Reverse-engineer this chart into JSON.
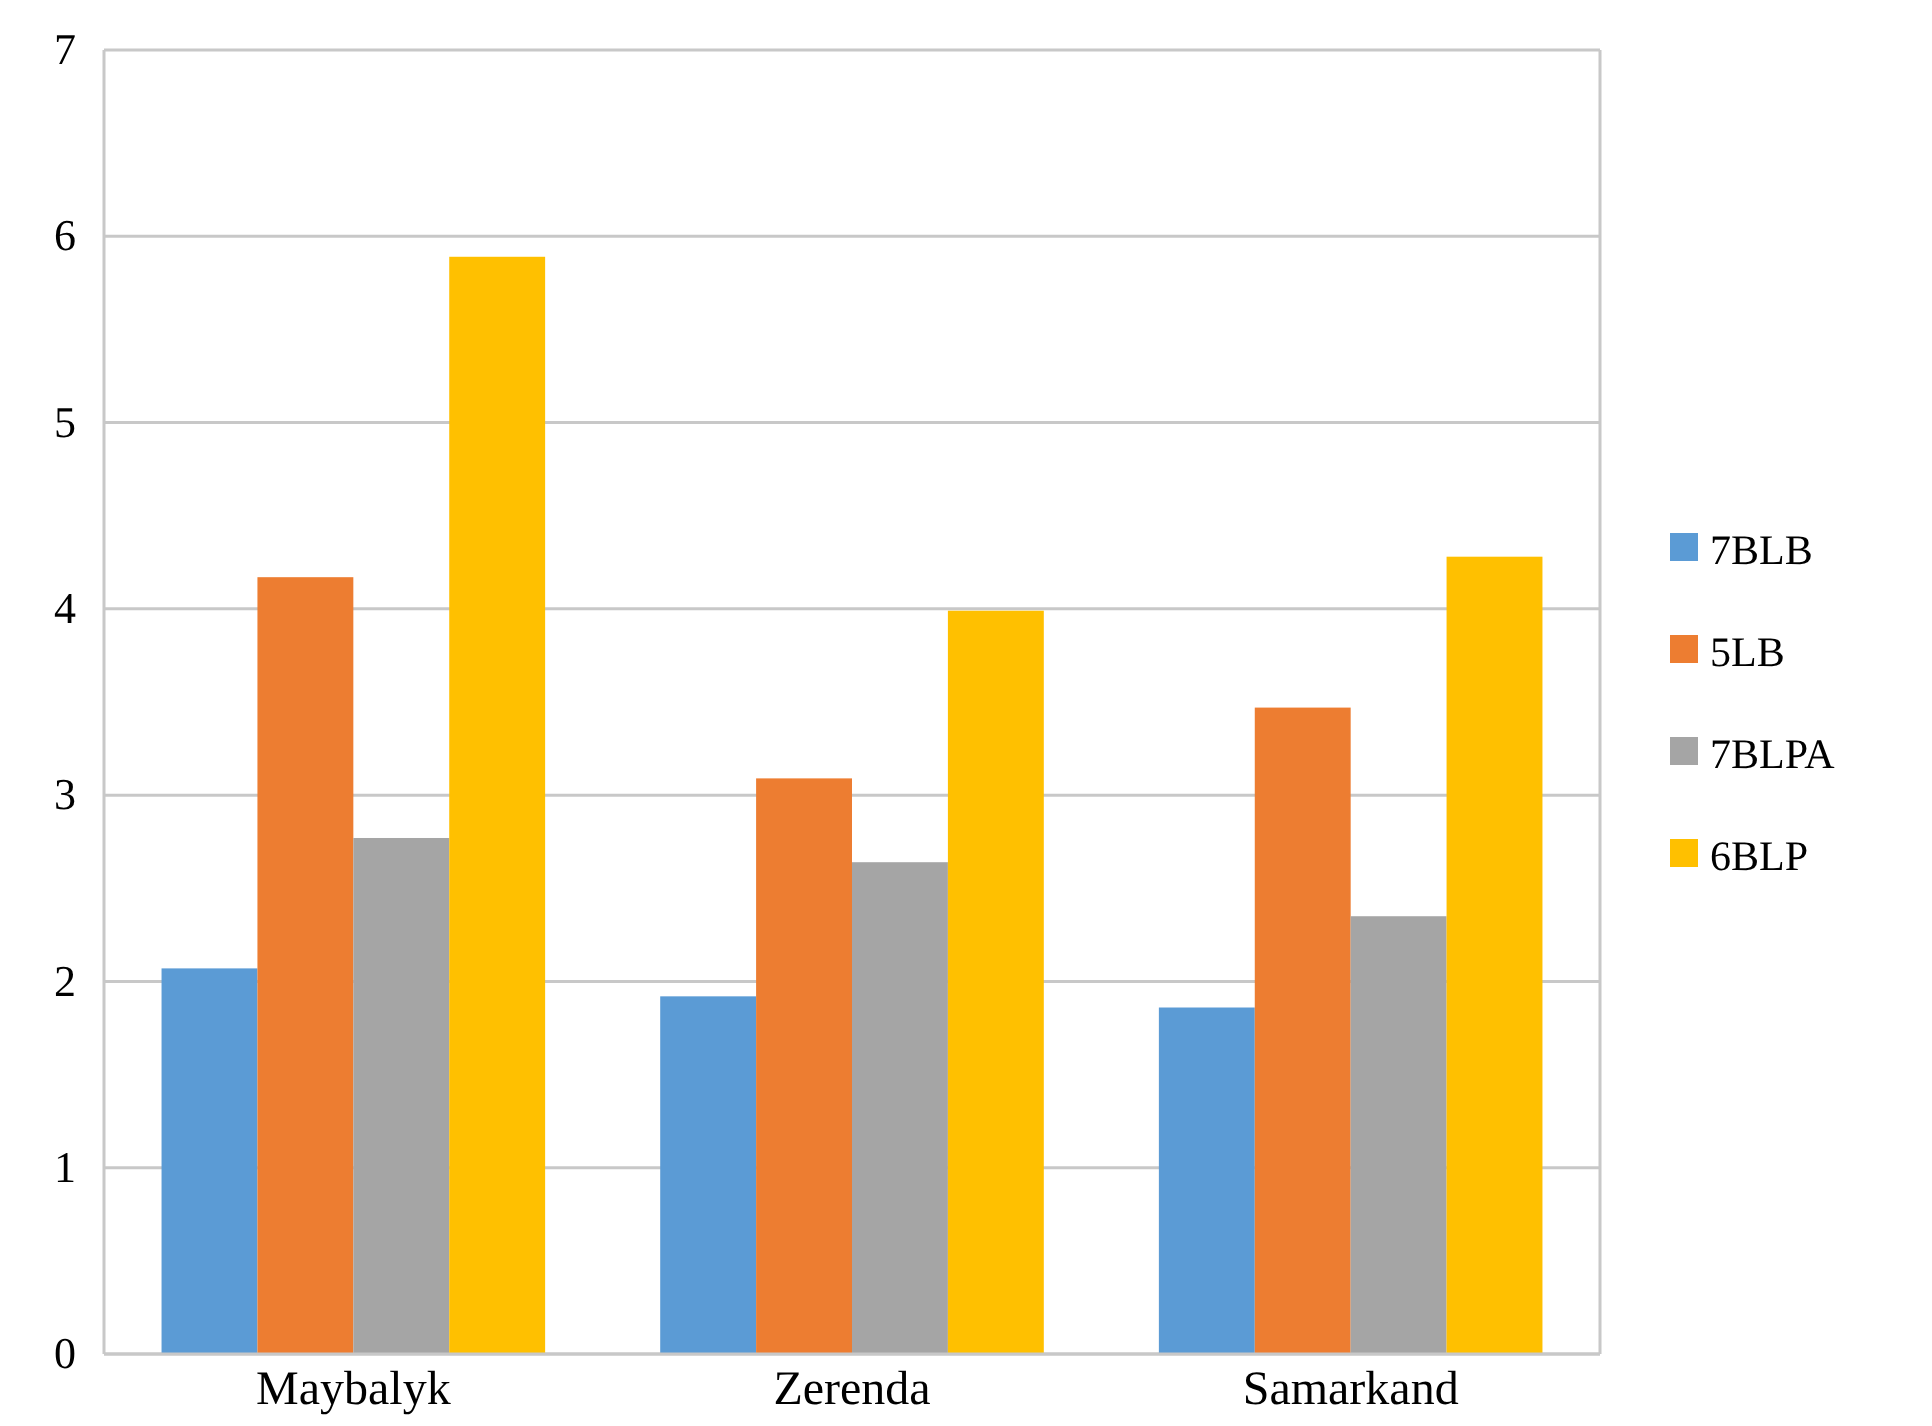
{
  "chart_data": {
    "type": "bar",
    "categories": [
      "Maybalyk",
      "Zerenda",
      "Samarkand"
    ],
    "series": [
      {
        "name": "7BLB",
        "color": "#5b9bd5",
        "values": [
          2.07,
          1.92,
          1.86
        ]
      },
      {
        "name": "5LB",
        "color": "#ed7d31",
        "values": [
          4.17,
          3.09,
          3.47
        ]
      },
      {
        "name": "7BLPA",
        "color": "#a5a5a5",
        "values": [
          2.77,
          2.64,
          2.35
        ]
      },
      {
        "name": "6BLP",
        "color": "#ffc000",
        "values": [
          5.89,
          3.99,
          4.28
        ]
      }
    ],
    "ylim": [
      0,
      7
    ],
    "yticks": [
      0,
      1,
      2,
      3,
      4,
      5,
      6,
      7
    ],
    "grid": "y",
    "legend": "right"
  }
}
